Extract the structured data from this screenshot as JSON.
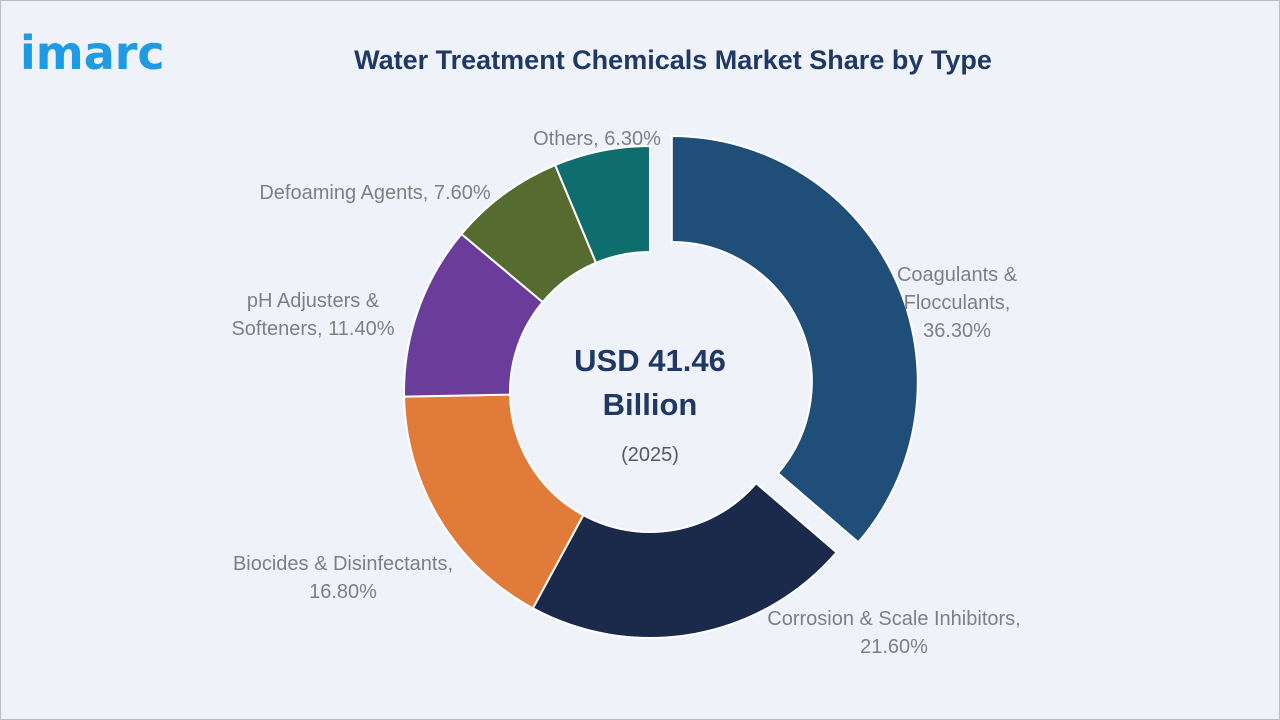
{
  "brand": {
    "logo_text": "imarc",
    "logo_color": "#1e9be2"
  },
  "chart_data": {
    "type": "pie",
    "donut": true,
    "title": "Water Treatment Chemicals Market Share by Type",
    "center_value": "USD 41.46",
    "center_unit": "Billion",
    "center_year": "(2025)",
    "slices": [
      {
        "name": "Coagulants & Flocculants",
        "value": 36.3,
        "label_lines": [
          "Coagulants &",
          "Flocculants,",
          "36.30%"
        ],
        "color": "#1f4e79",
        "exploded": true
      },
      {
        "name": "Corrosion & Scale Inhibitors",
        "value": 21.6,
        "label_lines": [
          "Corrosion & Scale Inhibitors,",
          "21.60%"
        ],
        "color": "#1b2a4a",
        "exploded": false
      },
      {
        "name": "Biocides & Disinfectants",
        "value": 16.8,
        "label_lines": [
          "Biocides & Disinfectants,",
          "16.80%"
        ],
        "color": "#e07b39",
        "exploded": false
      },
      {
        "name": "pH Adjusters & Softeners",
        "value": 11.4,
        "label_lines": [
          "pH Adjusters &",
          "Softeners, 11.40%"
        ],
        "color": "#6a3d9a",
        "exploded": false
      },
      {
        "name": "Defoaming Agents",
        "value": 7.6,
        "label_lines": [
          "Defoaming Agents, 7.60%"
        ],
        "color": "#556b2f",
        "exploded": false
      },
      {
        "name": "Others",
        "value": 6.3,
        "label_lines": [
          "Others, 6.30%"
        ],
        "color": "#0e6e6e",
        "exploded": false
      }
    ]
  },
  "colors": {
    "title": "#1f3864",
    "label_text": "#7f7f7f",
    "center_text": "#1f3864",
    "year_text": "#595959"
  }
}
